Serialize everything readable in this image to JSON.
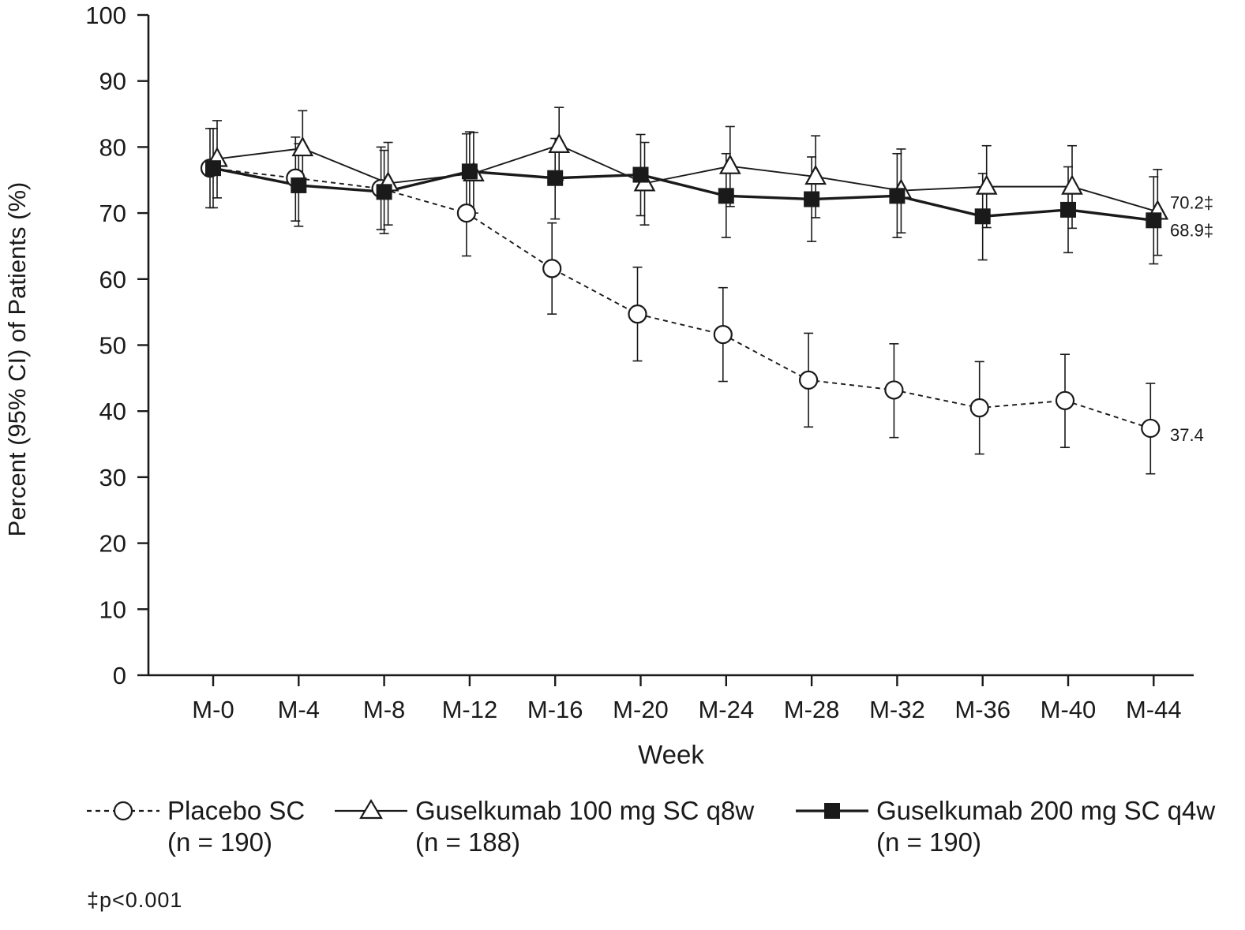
{
  "chart_data": {
    "type": "line",
    "title": "",
    "xlabel": "Week",
    "ylabel": "Percent (95% CI) of Patients (%)",
    "ylim": [
      0,
      100
    ],
    "yticks": [
      0,
      10,
      20,
      30,
      40,
      50,
      60,
      70,
      80,
      90,
      100
    ],
    "categories": [
      "M-0",
      "M-4",
      "M-8",
      "M-12",
      "M-16",
      "M-20",
      "M-24",
      "M-28",
      "M-32",
      "M-36",
      "M-40",
      "M-44"
    ],
    "grid": false,
    "legend_position": "bottom",
    "series": [
      {
        "key": "placebo",
        "name": "Placebo SC",
        "n_label": "(n = 190)",
        "marker": "open-circle",
        "line_style": "dashed",
        "color": "#1a1a1a",
        "values": [
          76.8,
          75.3,
          73.7,
          70.0,
          61.6,
          54.7,
          51.6,
          44.7,
          43.2,
          40.5,
          41.6,
          37.4
        ],
        "ci_low": [
          70.8,
          68.8,
          67.5,
          63.5,
          54.7,
          47.6,
          44.5,
          37.6,
          36.0,
          33.5,
          34.5,
          30.5
        ],
        "ci_high": [
          82.8,
          81.5,
          80.0,
          82.0,
          68.5,
          61.8,
          58.7,
          51.8,
          50.2,
          47.5,
          48.6,
          44.2
        ],
        "end_label": "37.4"
      },
      {
        "key": "q8w",
        "name": "Guselkumab 100 mg SC q8w",
        "n_label": "(n = 188)",
        "marker": "open-triangle",
        "line_style": "solid",
        "color": "#1a1a1a",
        "values": [
          78.2,
          79.8,
          74.5,
          76.0,
          80.3,
          74.5,
          77.1,
          75.5,
          73.4,
          74.0,
          74.0,
          70.2
        ],
        "ci_low": [
          72.3,
          74.0,
          68.2,
          70.0,
          75.0,
          68.2,
          71.0,
          69.3,
          67.0,
          67.8,
          67.7,
          63.6
        ],
        "ci_high": [
          84.0,
          85.5,
          80.7,
          82.2,
          86.0,
          80.7,
          83.1,
          81.7,
          79.7,
          80.2,
          80.2,
          76.6
        ],
        "end_label": "70.2‡"
      },
      {
        "key": "q4w",
        "name": "Guselkumab 200 mg SC q4w",
        "n_label": "(n = 190)",
        "marker": "filled-square",
        "line_style": "solid",
        "color": "#1a1a1a",
        "values": [
          76.8,
          74.2,
          73.2,
          76.3,
          75.3,
          75.8,
          72.6,
          72.1,
          72.6,
          69.5,
          70.5,
          68.9
        ],
        "ci_low": [
          70.8,
          68.0,
          66.9,
          70.4,
          69.1,
          69.6,
          66.3,
          65.7,
          66.3,
          62.9,
          64.0,
          62.3
        ],
        "ci_high": [
          82.8,
          80.5,
          79.5,
          82.3,
          81.3,
          81.9,
          79.0,
          78.5,
          79.0,
          76.0,
          77.0,
          75.5
        ],
        "end_label": "68.9‡"
      }
    ],
    "footnote": "‡p<0.001"
  }
}
